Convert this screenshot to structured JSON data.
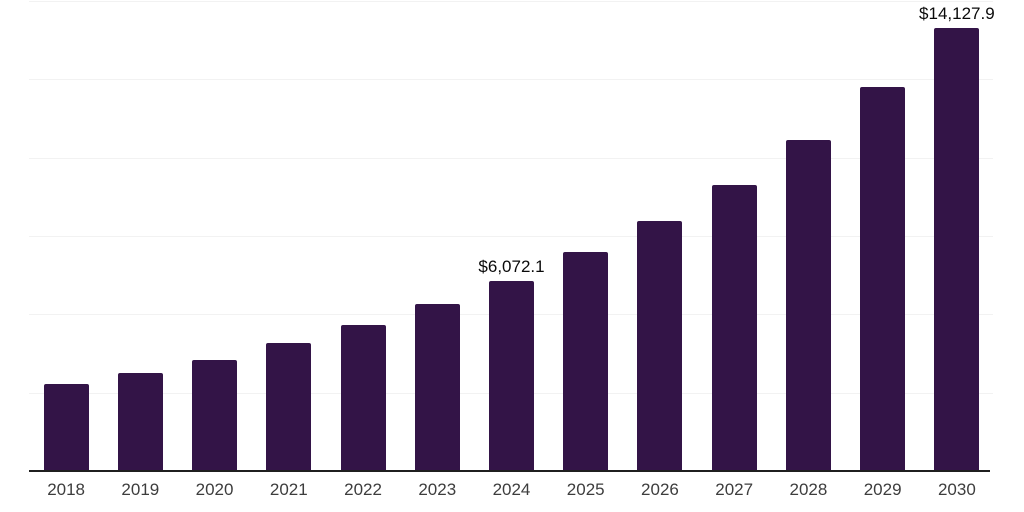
{
  "chart_data": {
    "type": "bar",
    "title": "",
    "xlabel": "",
    "ylabel": "",
    "categories": [
      "2018",
      "2019",
      "2020",
      "2021",
      "2022",
      "2023",
      "2024",
      "2025",
      "2026",
      "2027",
      "2028",
      "2029",
      "2030"
    ],
    "values": [
      2790,
      3115,
      3540,
      4075,
      4670,
      5335,
      6072.1,
      6990,
      7970,
      9140,
      10550,
      12240,
      14127.9
    ],
    "value_labels": [
      {
        "category": "2024",
        "text": "$6,072.1"
      },
      {
        "category": "2030",
        "text": "$14,127.9"
      }
    ],
    "ylim": [
      0,
      15000
    ],
    "grid_step": 2500,
    "grid": true,
    "legend": false,
    "y_axis_labels_visible": false,
    "bar_color": "#331447",
    "axis_line_color": "#1f1f1f",
    "grid_color": "#f2f2f2",
    "tick_label_color": "#3d3d3d",
    "data_label_color": "#0a0a0a"
  }
}
